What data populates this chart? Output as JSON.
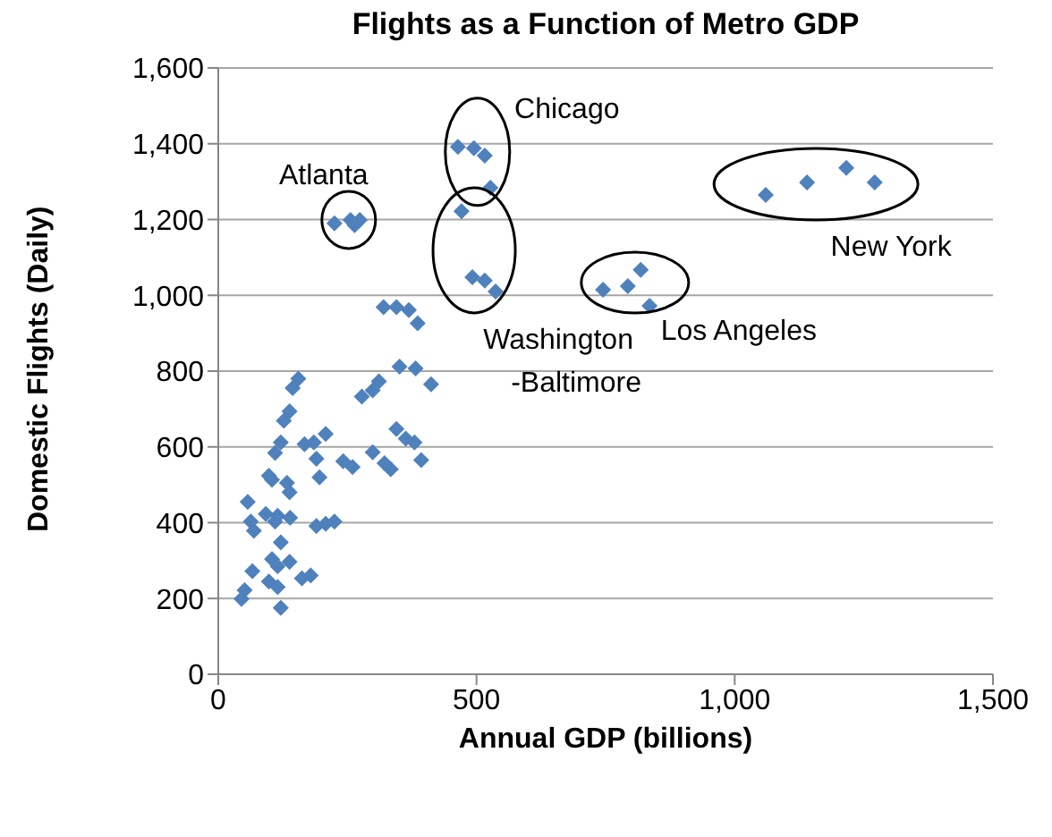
{
  "chart_data": {
    "type": "scatter",
    "title": "Flights as a Function of Metro GDP",
    "xlabel": "Annual GDP (billions)",
    "ylabel": "Domestic Flights (Daily)",
    "xlim": [
      0,
      1500
    ],
    "xticks": [
      0,
      500,
      {
        "value": 1000,
        "label": "1,000"
      },
      {
        "value": 1500,
        "label": "1,500"
      }
    ],
    "ylim": [
      0,
      1600
    ],
    "yticks": [
      0,
      200,
      400,
      600,
      800,
      {
        "value": 1000,
        "label": "1,000"
      },
      {
        "value": 1200,
        "label": "1,200"
      },
      {
        "value": 1400,
        "label": "1,400"
      },
      {
        "value": 1600,
        "label": "1,600"
      }
    ],
    "grid": "y",
    "legend": false,
    "marker": "diamond",
    "series": [
      {
        "color": "#4f81bd",
        "x": [
          225,
          256,
          274,
          264,
          464,
          495,
          516,
          527,
          471,
          492,
          516,
          537,
          745,
          793,
          818,
          835,
          1060,
          1140,
          1216,
          1271,
          320,
          345,
          369,
          386,
          351,
          382,
          412,
          311,
          299,
          278,
          155,
          144,
          138,
          127,
          121,
          110,
          98,
          104,
          133,
          138,
          167,
          185,
          208,
          190,
          196,
          242,
          260,
          299,
          322,
          334,
          345,
          363,
          380,
          393,
          57,
          63,
          69,
          92,
          110,
          115,
          139,
          190,
          208,
          225,
          121,
          104,
          115,
          138,
          98,
          115,
          162,
          179,
          66,
          51,
          45,
          121
        ],
        "values": [
          1190,
          1199,
          1199,
          1185,
          1392,
          1388,
          1369,
          1284,
          1222,
          1048,
          1039,
          1010,
          1015,
          1024,
          1067,
          972,
          1265,
          1298,
          1336,
          1298,
          969,
          969,
          961,
          926,
          812,
          807,
          765,
          773,
          749,
          733,
          780,
          755,
          694,
          669,
          612,
          584,
          524,
          513,
          505,
          480,
          607,
          612,
          634,
          569,
          520,
          562,
          547,
          586,
          557,
          541,
          647,
          622,
          612,
          565,
          455,
          403,
          379,
          423,
          403,
          418,
          413,
          391,
          397,
          403,
          348,
          304,
          285,
          297,
          245,
          230,
          253,
          261,
          272,
          222,
          199,
          175
        ]
      }
    ],
    "annotations": [
      {
        "text": "Atlanta",
        "x": 256,
        "y": 1199
      },
      {
        "text": "Chicago",
        "x": 495,
        "y": 1388
      },
      {
        "text": "Washington\n-Baltimore",
        "x": 492,
        "y": 1048
      },
      {
        "text": "Los Angeles",
        "x": 793,
        "y": 1024
      },
      {
        "text": "New York",
        "x": 1140,
        "y": 1298
      }
    ]
  }
}
